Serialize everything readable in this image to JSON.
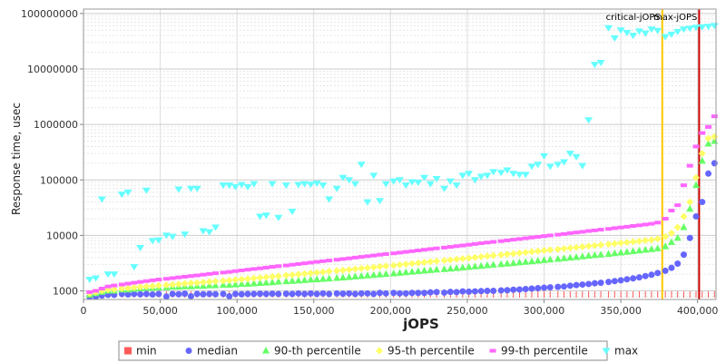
{
  "chart_data": {
    "type": "scatter",
    "title": "",
    "xlabel": "jOPS",
    "ylabel": "Response time, usec",
    "xlim": [
      0,
      412000
    ],
    "ylim": [
      700,
      120000000
    ],
    "y_scale": "log",
    "grid": true,
    "legend_position": "bottom",
    "x_ticks": [
      "0",
      "50,000",
      "100,000",
      "150,000",
      "200,000",
      "250,000",
      "300,000",
      "350,000",
      "400,000"
    ],
    "x_tick_values": [
      0,
      50000,
      100000,
      150000,
      200000,
      250000,
      300000,
      350000,
      400000
    ],
    "y_ticks": [
      "1000",
      "10000",
      "100000",
      "1000000",
      "10000000",
      "100000000"
    ],
    "y_tick_values": [
      1000,
      10000,
      100000,
      1000000,
      10000000,
      100000000
    ],
    "annotations": [
      {
        "label": "critical-jOPS",
        "x": 377000,
        "color": "#ffc800"
      },
      {
        "label": "max-jOPS",
        "x": 401000,
        "color": "#cc0000"
      }
    ],
    "x": [
      4000,
      8000,
      12000,
      16000,
      20000,
      25000,
      29000,
      33000,
      37000,
      41000,
      45000,
      49000,
      54000,
      58000,
      62000,
      66000,
      70000,
      74000,
      78000,
      82000,
      86000,
      91000,
      95000,
      99000,
      103000,
      107000,
      111000,
      115000,
      119000,
      123000,
      127000,
      132000,
      136000,
      140000,
      144000,
      148000,
      152000,
      156000,
      160000,
      165000,
      169000,
      173000,
      177000,
      181000,
      185000,
      189000,
      193000,
      197000,
      202000,
      206000,
      210000,
      214000,
      218000,
      222000,
      226000,
      230000,
      235000,
      239000,
      243000,
      247000,
      251000,
      255000,
      259000,
      263000,
      267000,
      272000,
      276000,
      280000,
      284000,
      288000,
      292000,
      296000,
      300000,
      304000,
      309000,
      313000,
      317000,
      321000,
      325000,
      329000,
      333000,
      337000,
      342000,
      346000,
      350000,
      354000,
      358000,
      362000,
      366000,
      370000,
      374000,
      379000,
      383000,
      387000,
      391000,
      395000,
      399000,
      403000,
      407000,
      411000
    ],
    "series": [
      {
        "name": "min",
        "color": "#ff5a5a",
        "values": [
          700,
          700,
          700,
          700,
          700,
          700,
          700,
          700,
          700,
          700,
          700,
          700,
          700,
          700,
          700,
          700,
          700,
          700,
          700,
          700,
          700,
          700,
          700,
          700,
          700,
          700,
          700,
          700,
          700,
          700,
          700,
          700,
          700,
          700,
          700,
          700,
          700,
          700,
          700,
          700,
          700,
          700,
          700,
          700,
          700,
          700,
          700,
          700,
          700,
          700,
          700,
          700,
          700,
          700,
          700,
          700,
          700,
          700,
          700,
          700,
          700,
          700,
          700,
          700,
          700,
          700,
          700,
          700,
          700,
          700,
          700,
          700,
          700,
          700,
          700,
          700,
          700,
          700,
          700,
          700,
          700,
          700,
          700,
          700,
          700,
          700,
          700,
          700,
          700,
          700,
          700,
          700,
          700,
          700,
          700,
          700,
          700,
          700,
          700,
          700
        ]
      },
      {
        "name": "median",
        "color": "#6666ff",
        "values": [
          750,
          780,
          820,
          850,
          850,
          880,
          860,
          880,
          870,
          880,
          860,
          880,
          790,
          880,
          870,
          890,
          800,
          880,
          870,
          880,
          870,
          880,
          800,
          880,
          870,
          880,
          880,
          890,
          880,
          890,
          880,
          890,
          880,
          900,
          880,
          900,
          880,
          900,
          880,
          900,
          890,
          900,
          880,
          900,
          900,
          880,
          920,
          900,
          920,
          900,
          900,
          920,
          920,
          920,
          940,
          950,
          930,
          960,
          950,
          980,
          970,
          980,
          990,
          1000,
          1000,
          1020,
          1030,
          1050,
          1060,
          1080,
          1100,
          1120,
          1140,
          1160,
          1180,
          1200,
          1240,
          1270,
          1300,
          1330,
          1370,
          1400,
          1450,
          1500,
          1550,
          1620,
          1680,
          1750,
          1850,
          1950,
          2100,
          2300,
          2600,
          3100,
          4500,
          9000,
          22000,
          40000,
          130000,
          200000
        ]
      },
      {
        "name": "90-th percentile",
        "color": "#66ff66",
        "values": [
          850,
          900,
          950,
          1000,
          1000,
          1050,
          1050,
          1080,
          1100,
          1120,
          1120,
          1150,
          1150,
          1180,
          1180,
          1200,
          1200,
          1220,
          1220,
          1250,
          1250,
          1280,
          1280,
          1300,
          1320,
          1330,
          1350,
          1380,
          1400,
          1420,
          1450,
          1480,
          1500,
          1520,
          1550,
          1580,
          1600,
          1630,
          1660,
          1700,
          1730,
          1760,
          1800,
          1840,
          1880,
          1920,
          1960,
          2000,
          2050,
          2100,
          2150,
          2200,
          2250,
          2300,
          2350,
          2400,
          2450,
          2500,
          2560,
          2620,
          2680,
          2740,
          2800,
          2870,
          2940,
          3010,
          3080,
          3150,
          3230,
          3310,
          3390,
          3470,
          3560,
          3650,
          3740,
          3840,
          3940,
          4040,
          4150,
          4260,
          4370,
          4480,
          4600,
          4730,
          4860,
          5000,
          5150,
          5300,
          5450,
          5600,
          5800,
          6300,
          7500,
          9000,
          14000,
          30000,
          80000,
          220000,
          450000,
          500000
        ]
      },
      {
        "name": "95-th percentile",
        "color": "#ffff66",
        "values": [
          900,
          950,
          1000,
          1050,
          1060,
          1100,
          1120,
          1150,
          1180,
          1200,
          1220,
          1250,
          1270,
          1300,
          1320,
          1350,
          1380,
          1400,
          1430,
          1460,
          1490,
          1520,
          1550,
          1580,
          1620,
          1650,
          1690,
          1730,
          1770,
          1810,
          1850,
          1900,
          1940,
          1990,
          2040,
          2090,
          2140,
          2190,
          2250,
          2300,
          2360,
          2420,
          2480,
          2540,
          2600,
          2670,
          2740,
          2810,
          2880,
          2950,
          3030,
          3110,
          3190,
          3270,
          3350,
          3440,
          3530,
          3620,
          3710,
          3810,
          3910,
          4010,
          4120,
          4230,
          4340,
          4450,
          4570,
          4690,
          4810,
          4940,
          5070,
          5200,
          5340,
          5480,
          5620,
          5770,
          5920,
          6080,
          6240,
          6400,
          6570,
          6740,
          6920,
          7100,
          7290,
          7480,
          7680,
          7880,
          8100,
          8300,
          8700,
          9500,
          11000,
          14000,
          22000,
          40000,
          110000,
          300000,
          560000,
          600000
        ]
      },
      {
        "name": "99-th percentile",
        "color": "#ff66ff",
        "values": [
          950,
          1000,
          1100,
          1200,
          1250,
          1300,
          1350,
          1400,
          1450,
          1500,
          1550,
          1600,
          1650,
          1700,
          1750,
          1800,
          1850,
          1900,
          1960,
          2020,
          2080,
          2140,
          2200,
          2270,
          2340,
          2410,
          2480,
          2550,
          2630,
          2710,
          2790,
          2870,
          2960,
          3050,
          3140,
          3230,
          3330,
          3430,
          3530,
          3640,
          3750,
          3860,
          3980,
          4100,
          4220,
          4350,
          4480,
          4610,
          4750,
          4890,
          5040,
          5190,
          5350,
          5510,
          5680,
          5850,
          6030,
          6210,
          6400,
          6590,
          6790,
          7000,
          7210,
          7430,
          7650,
          7880,
          8120,
          8370,
          8620,
          8880,
          9150,
          9430,
          9720,
          10000,
          10300,
          10600,
          11000,
          11300,
          11600,
          12000,
          12300,
          12700,
          13100,
          13500,
          13900,
          14300,
          14800,
          15200,
          15700,
          16200,
          17000,
          20000,
          28000,
          35000,
          80000,
          180000,
          400000,
          700000,
          900000,
          1400000
        ]
      },
      {
        "name": "max",
        "color": "#66ffff",
        "values": [
          1600,
          1700,
          45000,
          2000,
          2000,
          55000,
          60000,
          2700,
          6000,
          65000,
          8000,
          8200,
          10000,
          9500,
          68000,
          10500,
          70000,
          70000,
          12000,
          11500,
          14000,
          80000,
          80000,
          75000,
          82000,
          75000,
          85000,
          22000,
          23000,
          85000,
          21000,
          80000,
          27000,
          82000,
          85000,
          83000,
          87000,
          80000,
          45000,
          70000,
          110000,
          100000,
          85000,
          190000,
          40000,
          120000,
          42000,
          85000,
          95000,
          100000,
          80000,
          92000,
          90000,
          110000,
          85000,
          105000,
          70000,
          95000,
          80000,
          120000,
          130000,
          100000,
          115000,
          120000,
          140000,
          135000,
          150000,
          130000,
          125000,
          125000,
          175000,
          190000,
          270000,
          175000,
          190000,
          210000,
          300000,
          260000,
          180000,
          1200000,
          12000000,
          13000000,
          55000000,
          36000000,
          50000000,
          45000000,
          40000000,
          48000000,
          44000000,
          52000000,
          49000000,
          38000000,
          42000000,
          47000000,
          52000000,
          54000000,
          56000000,
          57000000,
          58000000,
          60000000
        ]
      }
    ],
    "legend": [
      "min",
      "median",
      "90-th percentile",
      "95-th percentile",
      "99-th percentile",
      "max"
    ]
  }
}
